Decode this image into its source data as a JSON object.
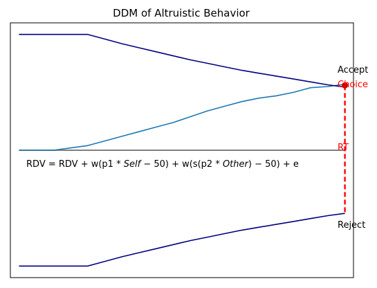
{
  "chart_data": {
    "type": "line",
    "title": "DDM of Altruistic Behavior",
    "xlabel": "",
    "ylabel": "",
    "xlim": [
      -1,
      39
    ],
    "ylim": [
      -1.1,
      1.1
    ],
    "grid": false,
    "axes_ticks": false,
    "series": [
      {
        "role": "evidence",
        "x": [
          0,
          2,
          4,
          6,
          8,
          10,
          12,
          14,
          16,
          18,
          20,
          22,
          24,
          26,
          28,
          30,
          32,
          34,
          36,
          38
        ],
        "values": [
          0.0,
          0.0,
          0.0,
          0.02,
          0.04,
          0.08,
          0.12,
          0.16,
          0.2,
          0.24,
          0.29,
          0.34,
          0.38,
          0.42,
          0.45,
          0.47,
          0.5,
          0.54,
          0.55,
          0.57
        ]
      },
      {
        "role": "upper-bound",
        "x": [
          0,
          2,
          4,
          6,
          8,
          10,
          12,
          14,
          16,
          18,
          20,
          22,
          24,
          26,
          28,
          30,
          32,
          34,
          36,
          38
        ],
        "values": [
          1.0,
          1.0,
          1.0,
          1.0,
          1.0,
          0.96,
          0.92,
          0.885,
          0.85,
          0.815,
          0.78,
          0.75,
          0.72,
          0.69,
          0.665,
          0.64,
          0.615,
          0.59,
          0.565,
          0.545
        ]
      },
      {
        "role": "lower-bound",
        "x": [
          0,
          2,
          4,
          6,
          8,
          10,
          12,
          14,
          16,
          18,
          20,
          22,
          24,
          26,
          28,
          30,
          32,
          34,
          36,
          38
        ],
        "values": [
          -1.0,
          -1.0,
          -1.0,
          -1.0,
          -1.0,
          -0.96,
          -0.92,
          -0.885,
          -0.85,
          -0.815,
          -0.78,
          -0.75,
          -0.72,
          -0.69,
          -0.665,
          -0.64,
          -0.615,
          -0.59,
          -0.565,
          -0.545
        ]
      }
    ],
    "baseline": {
      "y": 0,
      "x_range": [
        0,
        38
      ]
    },
    "rt_marker": {
      "x": 38,
      "y": 0.56,
      "from_y": 0.56,
      "to_y": -0.545
    },
    "annotations": {
      "accept": "Accept",
      "choice": "Choice",
      "rt": "RT",
      "reject": "Reject"
    },
    "equation": {
      "part1": "RDV = RDV + w(p1 * ",
      "self": "Self",
      "part2": " − 50) + w(s(p2 * ",
      "other": "Other",
      "part3": ") − 50) + e"
    }
  },
  "colors": {
    "evidence": "#1f77b4",
    "bounds": "#000080",
    "baseline": "#808080",
    "highlight": "#ff0000",
    "choice_dot": "#cc0000"
  }
}
